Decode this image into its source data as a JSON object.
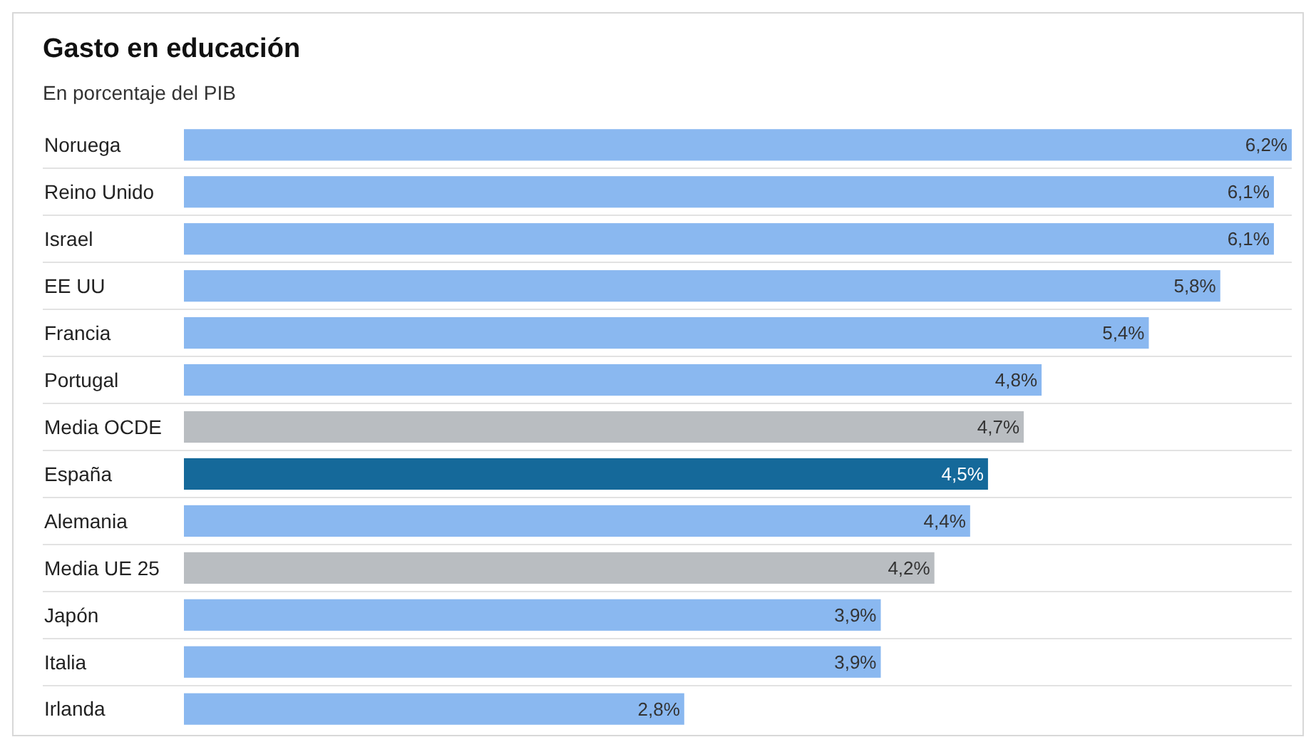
{
  "chart_data": {
    "type": "bar",
    "orientation": "horizontal",
    "title": "Gasto en educación",
    "subtitle": "En porcentaje del PIB",
    "categories": [
      "Noruega",
      "Reino Unido",
      "Israel",
      "EE UU",
      "Francia",
      "Portugal",
      "Media OCDE",
      "España",
      "Alemania",
      "Media UE 25",
      "Japón",
      "Italia",
      "Irlanda"
    ],
    "values": [
      6.2,
      6.1,
      6.1,
      5.8,
      5.4,
      4.8,
      4.7,
      4.5,
      4.4,
      4.2,
      3.9,
      3.9,
      2.8
    ],
    "colors": [
      "#8ab8f0",
      "#8ab8f0",
      "#8ab8f0",
      "#8ab8f0",
      "#8ab8f0",
      "#8ab8f0",
      "#b9bdc1",
      "#15699a",
      "#8ab8f0",
      "#b9bdc1",
      "#8ab8f0",
      "#8ab8f0",
      "#8ab8f0"
    ],
    "value_labels": [
      "6,2%",
      "6,1%",
      "6,1%",
      "5,8%",
      "5,4%",
      "4,8%",
      "4,7%",
      "4,5%",
      "4,4%",
      "4,2%",
      "3,9%",
      "3,9%",
      "2,8%"
    ],
    "xlim": [
      0,
      6.2
    ]
  }
}
